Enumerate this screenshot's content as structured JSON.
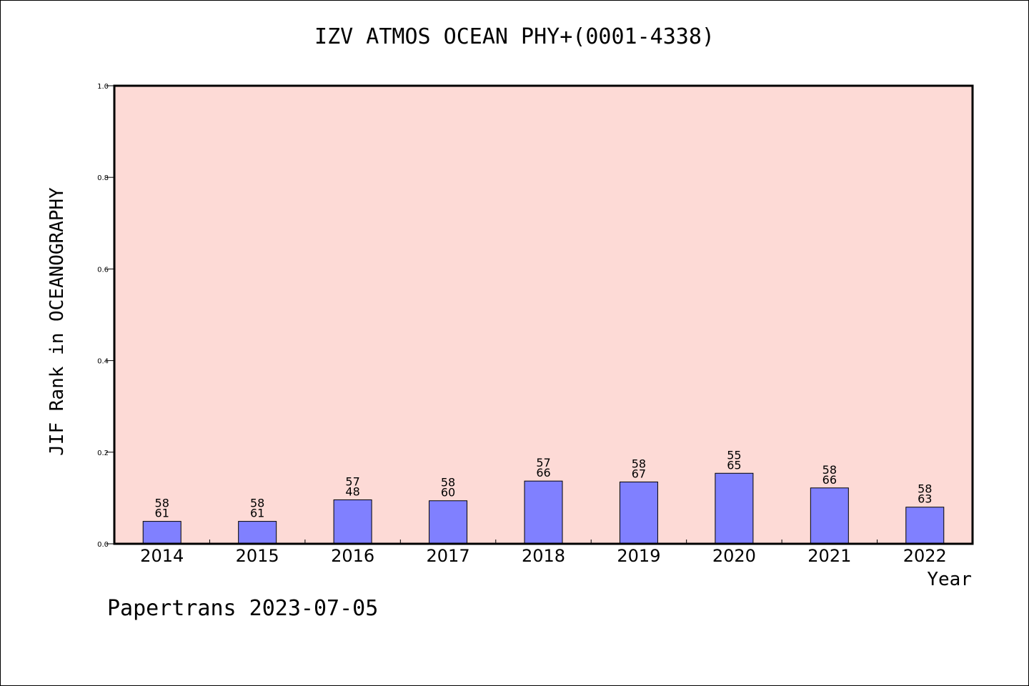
{
  "chart_data": {
    "type": "bar",
    "title": "IZV ATMOS OCEAN PHY+(0001-4338)",
    "xlabel": "Year",
    "ylabel": "JIF Rank in OCEANOGRAPHY",
    "ylim": [
      0.0,
      1.0
    ],
    "yticks": [
      "0.0",
      "0.2",
      "0.4",
      "0.6",
      "0.8",
      "1.0"
    ],
    "categories": [
      "2014",
      "2015",
      "2016",
      "2017",
      "2018",
      "2019",
      "2020",
      "2021",
      "2022"
    ],
    "values": [
      0.049,
      0.049,
      0.096,
      0.094,
      0.137,
      0.135,
      0.154,
      0.122,
      0.08
    ],
    "label_top": [
      "58",
      "58",
      "57",
      "58",
      "57",
      "58",
      "55",
      "58",
      "58"
    ],
    "label_bottom": [
      "61",
      "61",
      "48",
      "60",
      "66",
      "67",
      "65",
      "66",
      "63"
    ],
    "grid": false,
    "colors": {
      "plot_background": "#fddad6",
      "bar": "#8080ff",
      "bar_edge": "#000000"
    }
  },
  "footer": "Papertrans 2023-07-05"
}
